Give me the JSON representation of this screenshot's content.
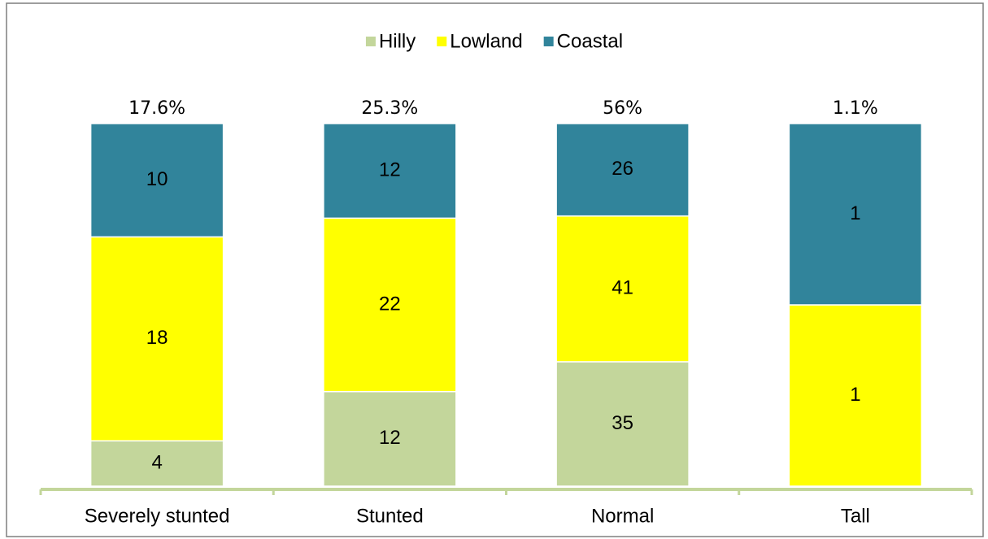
{
  "chart_data": {
    "type": "bar",
    "stacked": "percent",
    "categories": [
      "Severely stunted",
      "Stunted",
      "Normal",
      "Tall"
    ],
    "series": [
      {
        "name": "Hilly",
        "color": "#c3d69b",
        "values": [
          4,
          12,
          35,
          0
        ]
      },
      {
        "name": "Lowland",
        "color": "#ffff00",
        "values": [
          18,
          22,
          41,
          1
        ]
      },
      {
        "name": "Coastal",
        "color": "#31849b",
        "values": [
          10,
          12,
          26,
          1
        ]
      }
    ],
    "annotations": [
      "17.6%",
      "25.3%",
      "56%",
      "1.1%"
    ],
    "axis_color": "#c3d69b"
  }
}
